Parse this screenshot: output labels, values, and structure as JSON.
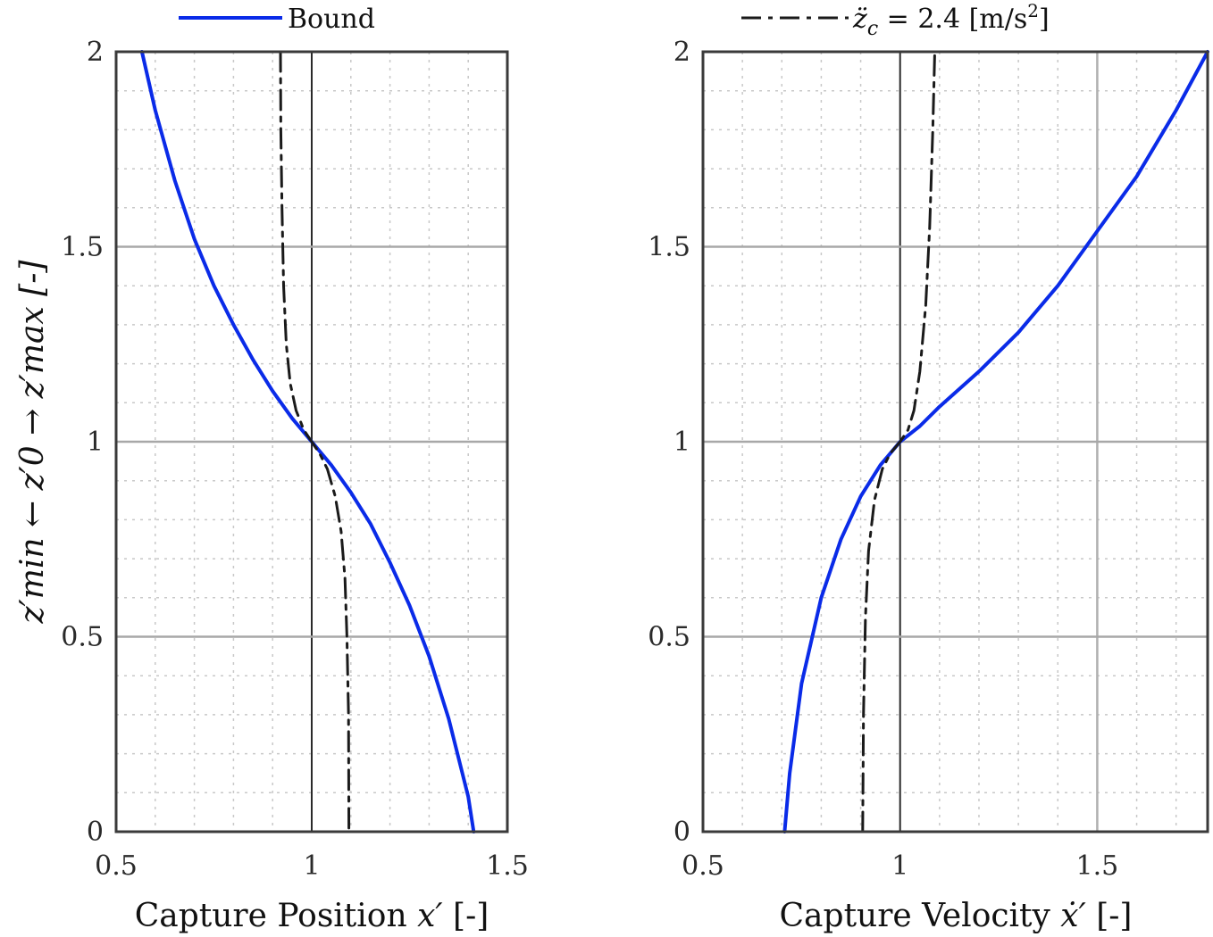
{
  "chart_data": [
    {
      "type": "line",
      "xlabel_prefix": "Capture Position ",
      "xlabel_var": "x′",
      "xlabel_suffix": " [-]",
      "ylabel": "z′min ← z′0 → z′max [-]",
      "xlim": [
        0.5,
        1.5
      ],
      "ylim": [
        0,
        2
      ],
      "xticks": [
        "0.5",
        "1",
        "1.5"
      ],
      "yticks": [
        "0",
        "0.5",
        "1",
        "1.5",
        "2"
      ],
      "grid": true,
      "legend_position": "top",
      "legend_label": "Bound",
      "series": [
        {
          "name": "Bound",
          "color": "#0a2be8",
          "style": "solid",
          "points": [
            [
              0.566,
              2.0
            ],
            [
              0.6,
              1.85
            ],
            [
              0.65,
              1.67
            ],
            [
              0.7,
              1.52
            ],
            [
              0.75,
              1.4
            ],
            [
              0.8,
              1.3
            ],
            [
              0.85,
              1.21
            ],
            [
              0.9,
              1.13
            ],
            [
              0.95,
              1.06
            ],
            [
              1.0,
              1.0
            ],
            [
              1.05,
              0.94
            ],
            [
              1.1,
              0.87
            ],
            [
              1.15,
              0.79
            ],
            [
              1.2,
              0.69
            ],
            [
              1.25,
              0.58
            ],
            [
              1.3,
              0.45
            ],
            [
              1.35,
              0.29
            ],
            [
              1.4,
              0.09
            ],
            [
              1.414,
              0.0
            ]
          ]
        },
        {
          "name": "ż_c = 2.4 [m/s²]",
          "color": "#1a1a1a",
          "style": "dashdot",
          "points": [
            [
              0.92,
              2.0
            ],
            [
              0.921,
              1.8
            ],
            [
              0.924,
              1.6
            ],
            [
              0.928,
              1.4
            ],
            [
              0.935,
              1.25
            ],
            [
              0.945,
              1.15
            ],
            [
              0.96,
              1.08
            ],
            [
              0.98,
              1.03
            ],
            [
              1.0,
              1.0
            ],
            [
              1.02,
              0.97
            ],
            [
              1.04,
              0.93
            ],
            [
              1.06,
              0.86
            ],
            [
              1.075,
              0.77
            ],
            [
              1.085,
              0.65
            ],
            [
              1.09,
              0.5
            ],
            [
              1.094,
              0.3
            ],
            [
              1.095,
              0.0
            ]
          ]
        }
      ]
    },
    {
      "type": "line",
      "xlabel_prefix": "Capture Velocity ",
      "xlabel_var": "ẋ′",
      "xlabel_suffix": " [-]",
      "xlim": [
        0.5,
        1.78
      ],
      "ylim": [
        0,
        2
      ],
      "xticks": [
        "0.5",
        "1",
        "1.5"
      ],
      "yticks": [
        "0",
        "0.5",
        "1",
        "1.5",
        "2"
      ],
      "grid": true,
      "legend_position": "top",
      "legend_label_main": "z̈",
      "legend_label_sub": "c",
      "legend_label_rest": " = 2.4 [m/s",
      "legend_label_sup": "2",
      "legend_label_end": "]",
      "series": [
        {
          "name": "Bound",
          "color": "#0a2be8",
          "style": "solid",
          "points": [
            [
              0.707,
              0.0
            ],
            [
              0.72,
              0.15
            ],
            [
              0.75,
              0.38
            ],
            [
              0.8,
              0.6
            ],
            [
              0.85,
              0.75
            ],
            [
              0.9,
              0.86
            ],
            [
              0.95,
              0.94
            ],
            [
              1.0,
              1.0
            ],
            [
              1.05,
              1.04
            ],
            [
              1.1,
              1.09
            ],
            [
              1.2,
              1.18
            ],
            [
              1.3,
              1.28
            ],
            [
              1.4,
              1.4
            ],
            [
              1.5,
              1.54
            ],
            [
              1.6,
              1.68
            ],
            [
              1.7,
              1.85
            ],
            [
              1.78,
              2.0
            ]
          ]
        },
        {
          "name": "ż_c = 2.4 [m/s²]",
          "color": "#1a1a1a",
          "style": "dashdot",
          "points": [
            [
              0.905,
              0.0
            ],
            [
              0.907,
              0.3
            ],
            [
              0.912,
              0.55
            ],
            [
              0.92,
              0.72
            ],
            [
              0.935,
              0.85
            ],
            [
              0.955,
              0.93
            ],
            [
              0.975,
              0.97
            ],
            [
              1.0,
              1.0
            ],
            [
              1.02,
              1.03
            ],
            [
              1.035,
              1.08
            ],
            [
              1.05,
              1.18
            ],
            [
              1.065,
              1.35
            ],
            [
              1.075,
              1.55
            ],
            [
              1.083,
              1.8
            ],
            [
              1.088,
              2.0
            ]
          ]
        }
      ]
    }
  ]
}
